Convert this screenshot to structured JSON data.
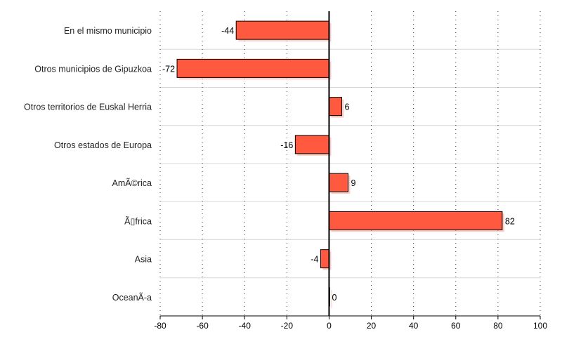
{
  "chart_data": {
    "type": "bar",
    "orientation": "horizontal",
    "categories": [
      "En el mismo municipio",
      "Otros municipios de Gipuzkoa",
      "Otros territorios de Euskal Herria",
      "Otros estados de Europa",
      "AmÃ©rica",
      "Ã▯frica",
      "Asia",
      "OceanÃ-a"
    ],
    "values": [
      -44,
      -72,
      6,
      -16,
      9,
      82,
      -4,
      0
    ],
    "data_labels": [
      "-44",
      "-72",
      "6",
      "-16",
      "9",
      "82",
      "-4",
      "0"
    ],
    "xlim": [
      -80,
      100
    ],
    "xticks": [
      -80,
      -60,
      -40,
      -20,
      0,
      20,
      40,
      60,
      80,
      100
    ],
    "xtick_labels": [
      "-80",
      "-60",
      "-40",
      "-20",
      "0",
      "20",
      "40",
      "60",
      "80",
      "100"
    ],
    "grid": true,
    "title": "",
    "xlabel": "",
    "ylabel": "",
    "bar_color": "#ff5a40"
  }
}
